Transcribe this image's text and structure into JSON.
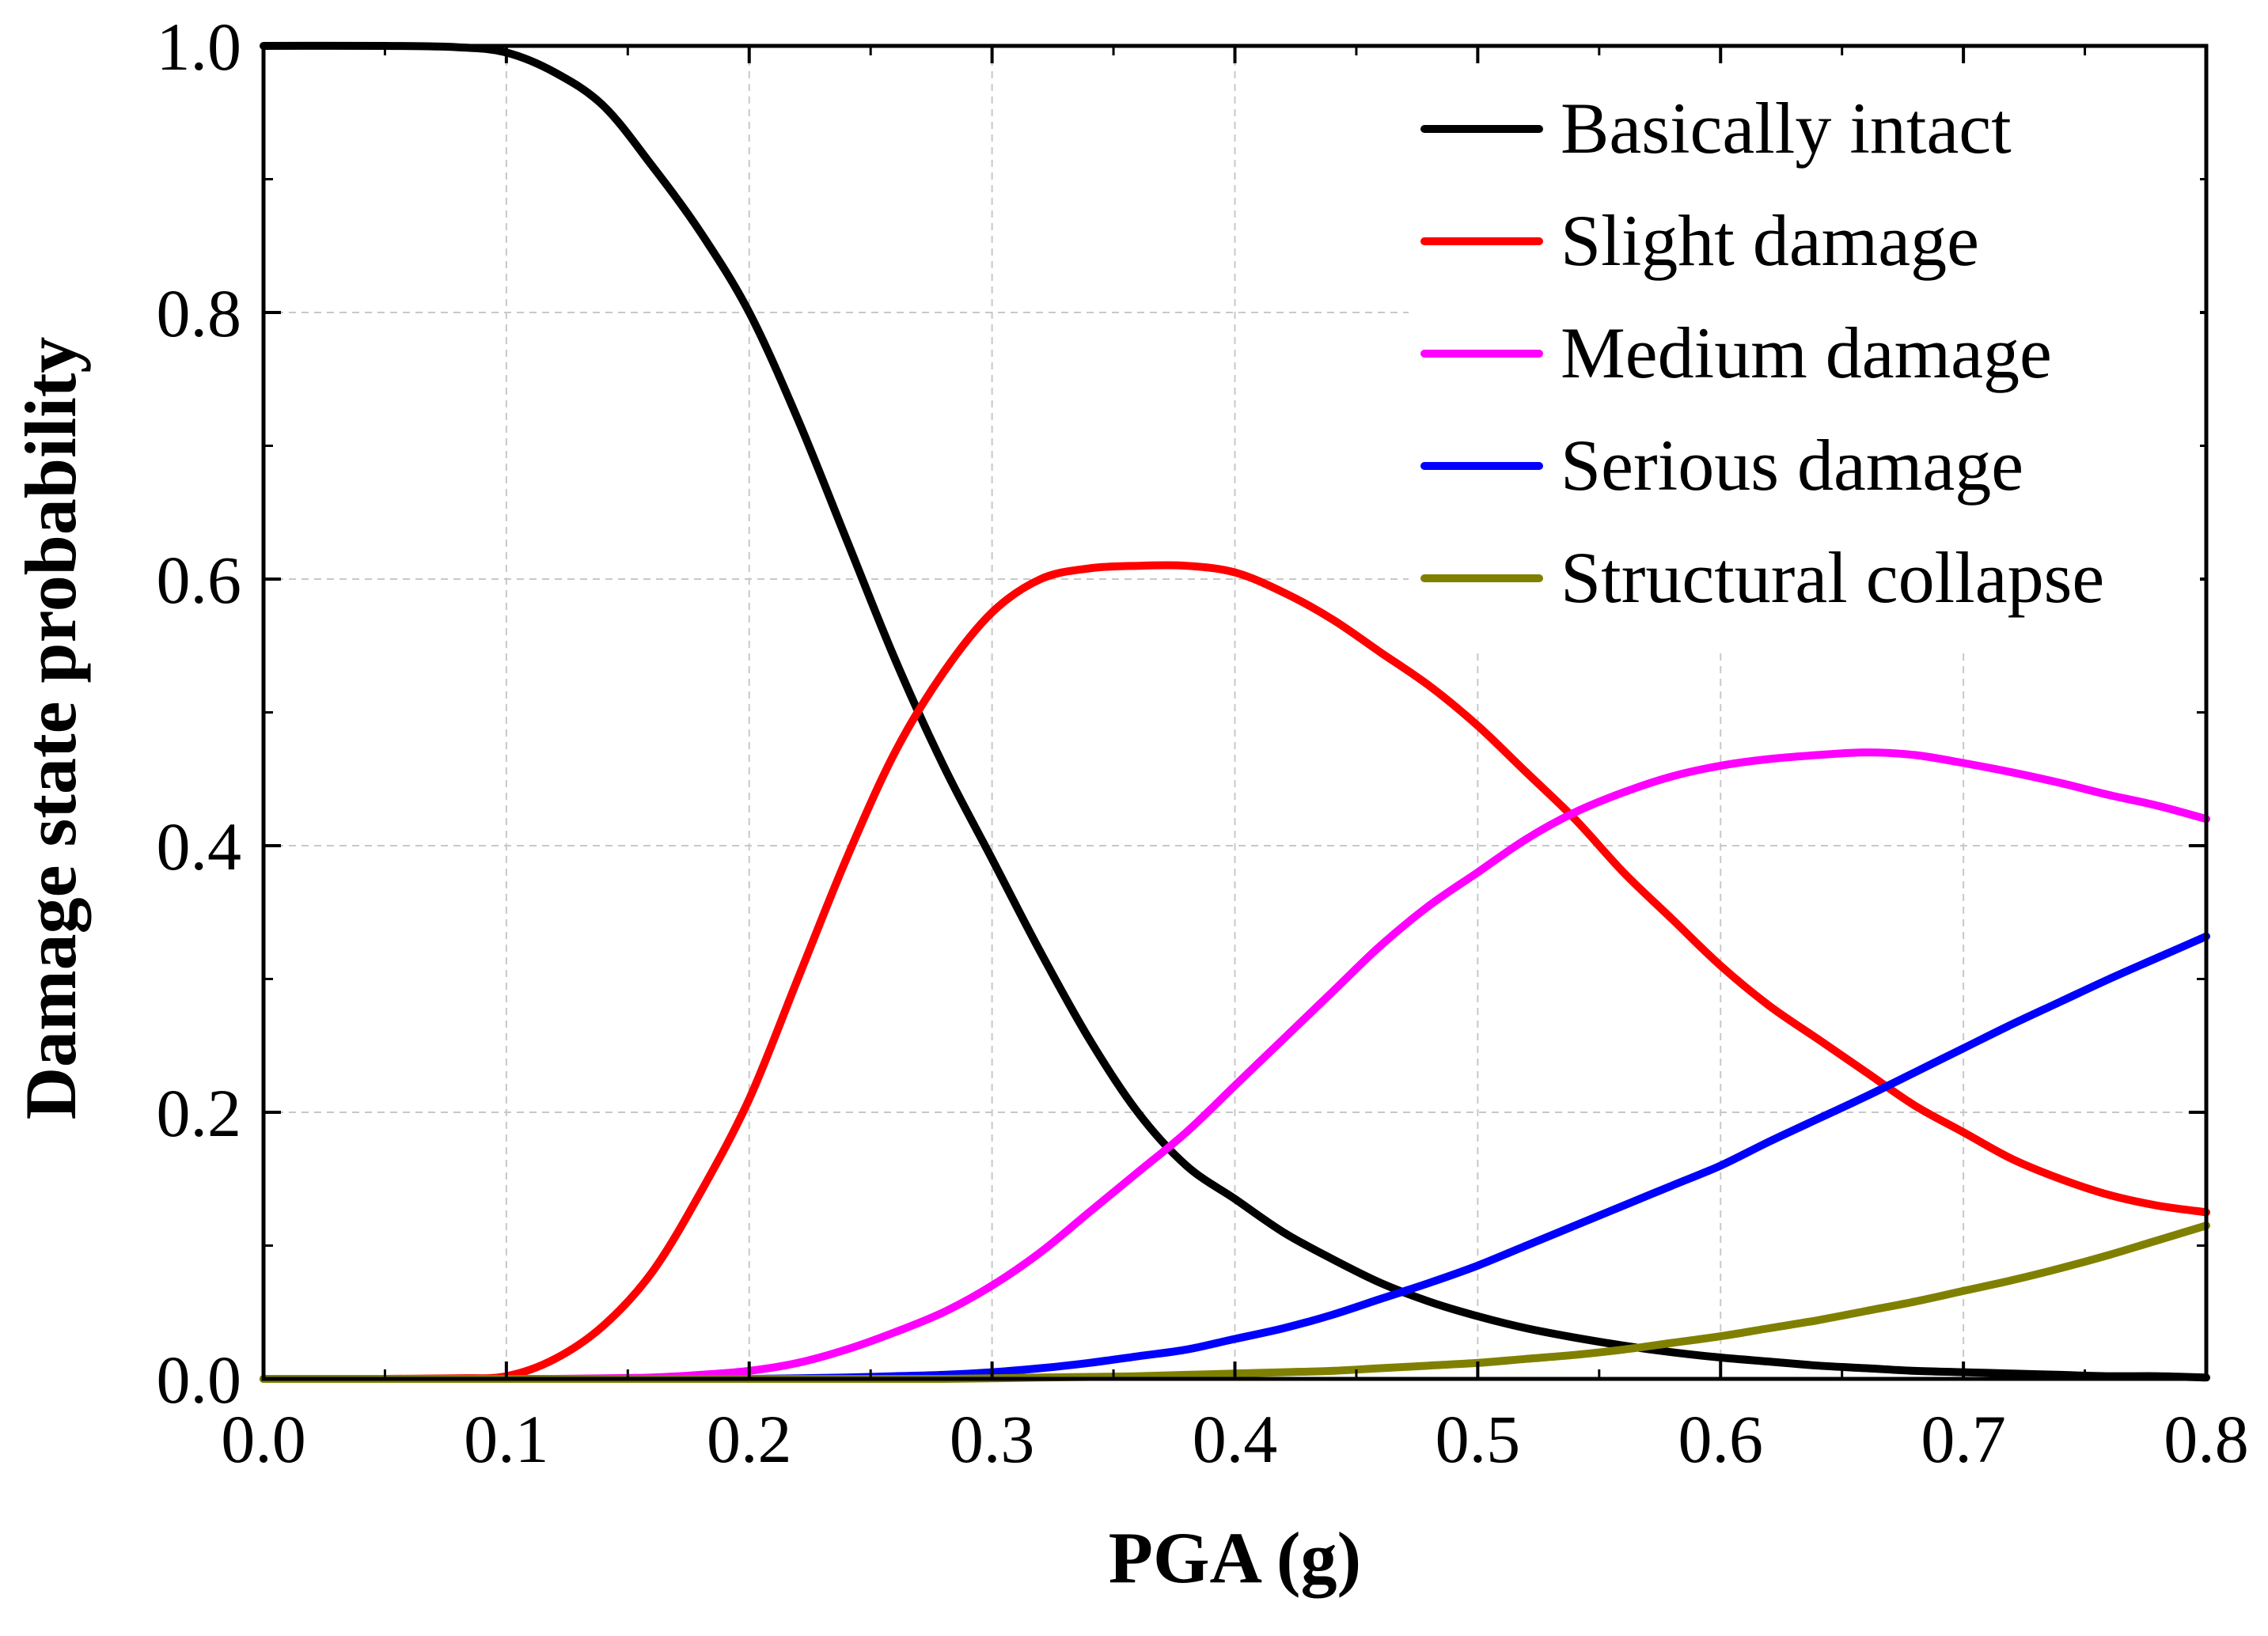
{
  "chart_data": {
    "type": "line",
    "title": "",
    "xlabel": "PGA (g)",
    "ylabel": "Damage state probability",
    "xlim": [
      0,
      0.8
    ],
    "ylim": [
      0,
      1.0
    ],
    "grid": true,
    "legend_position": "top-right",
    "x_ticks": [
      "0.0",
      "0.1",
      "0.2",
      "0.3",
      "0.4",
      "0.5",
      "0.6",
      "0.7",
      "0.8"
    ],
    "y_ticks": [
      "0.0",
      "0.2",
      "0.4",
      "0.6",
      "0.8",
      "1.0"
    ],
    "x": [
      0.0,
      0.05,
      0.08,
      0.1,
      0.12,
      0.14,
      0.16,
      0.18,
      0.2,
      0.22,
      0.24,
      0.26,
      0.28,
      0.3,
      0.32,
      0.34,
      0.36,
      0.38,
      0.4,
      0.42,
      0.44,
      0.46,
      0.48,
      0.5,
      0.52,
      0.54,
      0.56,
      0.58,
      0.6,
      0.62,
      0.64,
      0.66,
      0.68,
      0.7,
      0.72,
      0.74,
      0.76,
      0.78,
      0.8
    ],
    "series": [
      {
        "name": "Basically intact",
        "color": "#000000",
        "values": [
          1.0,
          1.0,
          0.999,
          0.995,
          0.98,
          0.955,
          0.91,
          0.86,
          0.8,
          0.72,
          0.63,
          0.54,
          0.46,
          0.39,
          0.32,
          0.255,
          0.2,
          0.16,
          0.135,
          0.11,
          0.09,
          0.072,
          0.058,
          0.047,
          0.038,
          0.031,
          0.025,
          0.02,
          0.016,
          0.013,
          0.01,
          0.008,
          0.006,
          0.005,
          0.004,
          0.003,
          0.002,
          0.002,
          0.001
        ]
      },
      {
        "name": "Slight damage",
        "color": "#ff0000",
        "values": [
          0.0,
          0.0,
          0.0005,
          0.002,
          0.015,
          0.04,
          0.08,
          0.14,
          0.21,
          0.3,
          0.39,
          0.47,
          0.53,
          0.575,
          0.6,
          0.608,
          0.61,
          0.61,
          0.605,
          0.59,
          0.57,
          0.545,
          0.52,
          0.49,
          0.455,
          0.42,
          0.38,
          0.345,
          0.31,
          0.28,
          0.255,
          0.23,
          0.205,
          0.185,
          0.165,
          0.15,
          0.138,
          0.13,
          0.125
        ]
      },
      {
        "name": "Medium damage",
        "color": "#ff00ff",
        "values": [
          0.0,
          0.0,
          0.0,
          0.0,
          0.0,
          0.0005,
          0.001,
          0.003,
          0.006,
          0.012,
          0.022,
          0.035,
          0.05,
          0.07,
          0.095,
          0.125,
          0.155,
          0.185,
          0.22,
          0.255,
          0.29,
          0.325,
          0.355,
          0.38,
          0.405,
          0.425,
          0.44,
          0.452,
          0.46,
          0.465,
          0.468,
          0.47,
          0.468,
          0.462,
          0.455,
          0.447,
          0.438,
          0.43,
          0.42
        ]
      },
      {
        "name": "Serious damage",
        "color": "#0000ff",
        "values": [
          0.0,
          0.0,
          0.0,
          0.0,
          0.0,
          0.0,
          0.0,
          0.0,
          0.0,
          0.0005,
          0.001,
          0.002,
          0.003,
          0.005,
          0.008,
          0.012,
          0.017,
          0.022,
          0.03,
          0.038,
          0.048,
          0.06,
          0.072,
          0.085,
          0.1,
          0.115,
          0.13,
          0.145,
          0.16,
          0.178,
          0.195,
          0.212,
          0.23,
          0.248,
          0.266,
          0.283,
          0.3,
          0.316,
          0.332
        ]
      },
      {
        "name": "Structural collapse",
        "color": "#808000",
        "values": [
          0.0,
          0.0,
          0.0,
          0.0,
          0.0,
          0.0,
          0.0,
          0.0,
          0.0,
          0.0,
          0.0,
          0.0,
          0.0,
          0.0005,
          0.001,
          0.0015,
          0.002,
          0.003,
          0.004,
          0.005,
          0.006,
          0.008,
          0.01,
          0.012,
          0.015,
          0.018,
          0.022,
          0.027,
          0.032,
          0.038,
          0.044,
          0.051,
          0.058,
          0.066,
          0.074,
          0.083,
          0.093,
          0.104,
          0.115
        ]
      }
    ]
  }
}
